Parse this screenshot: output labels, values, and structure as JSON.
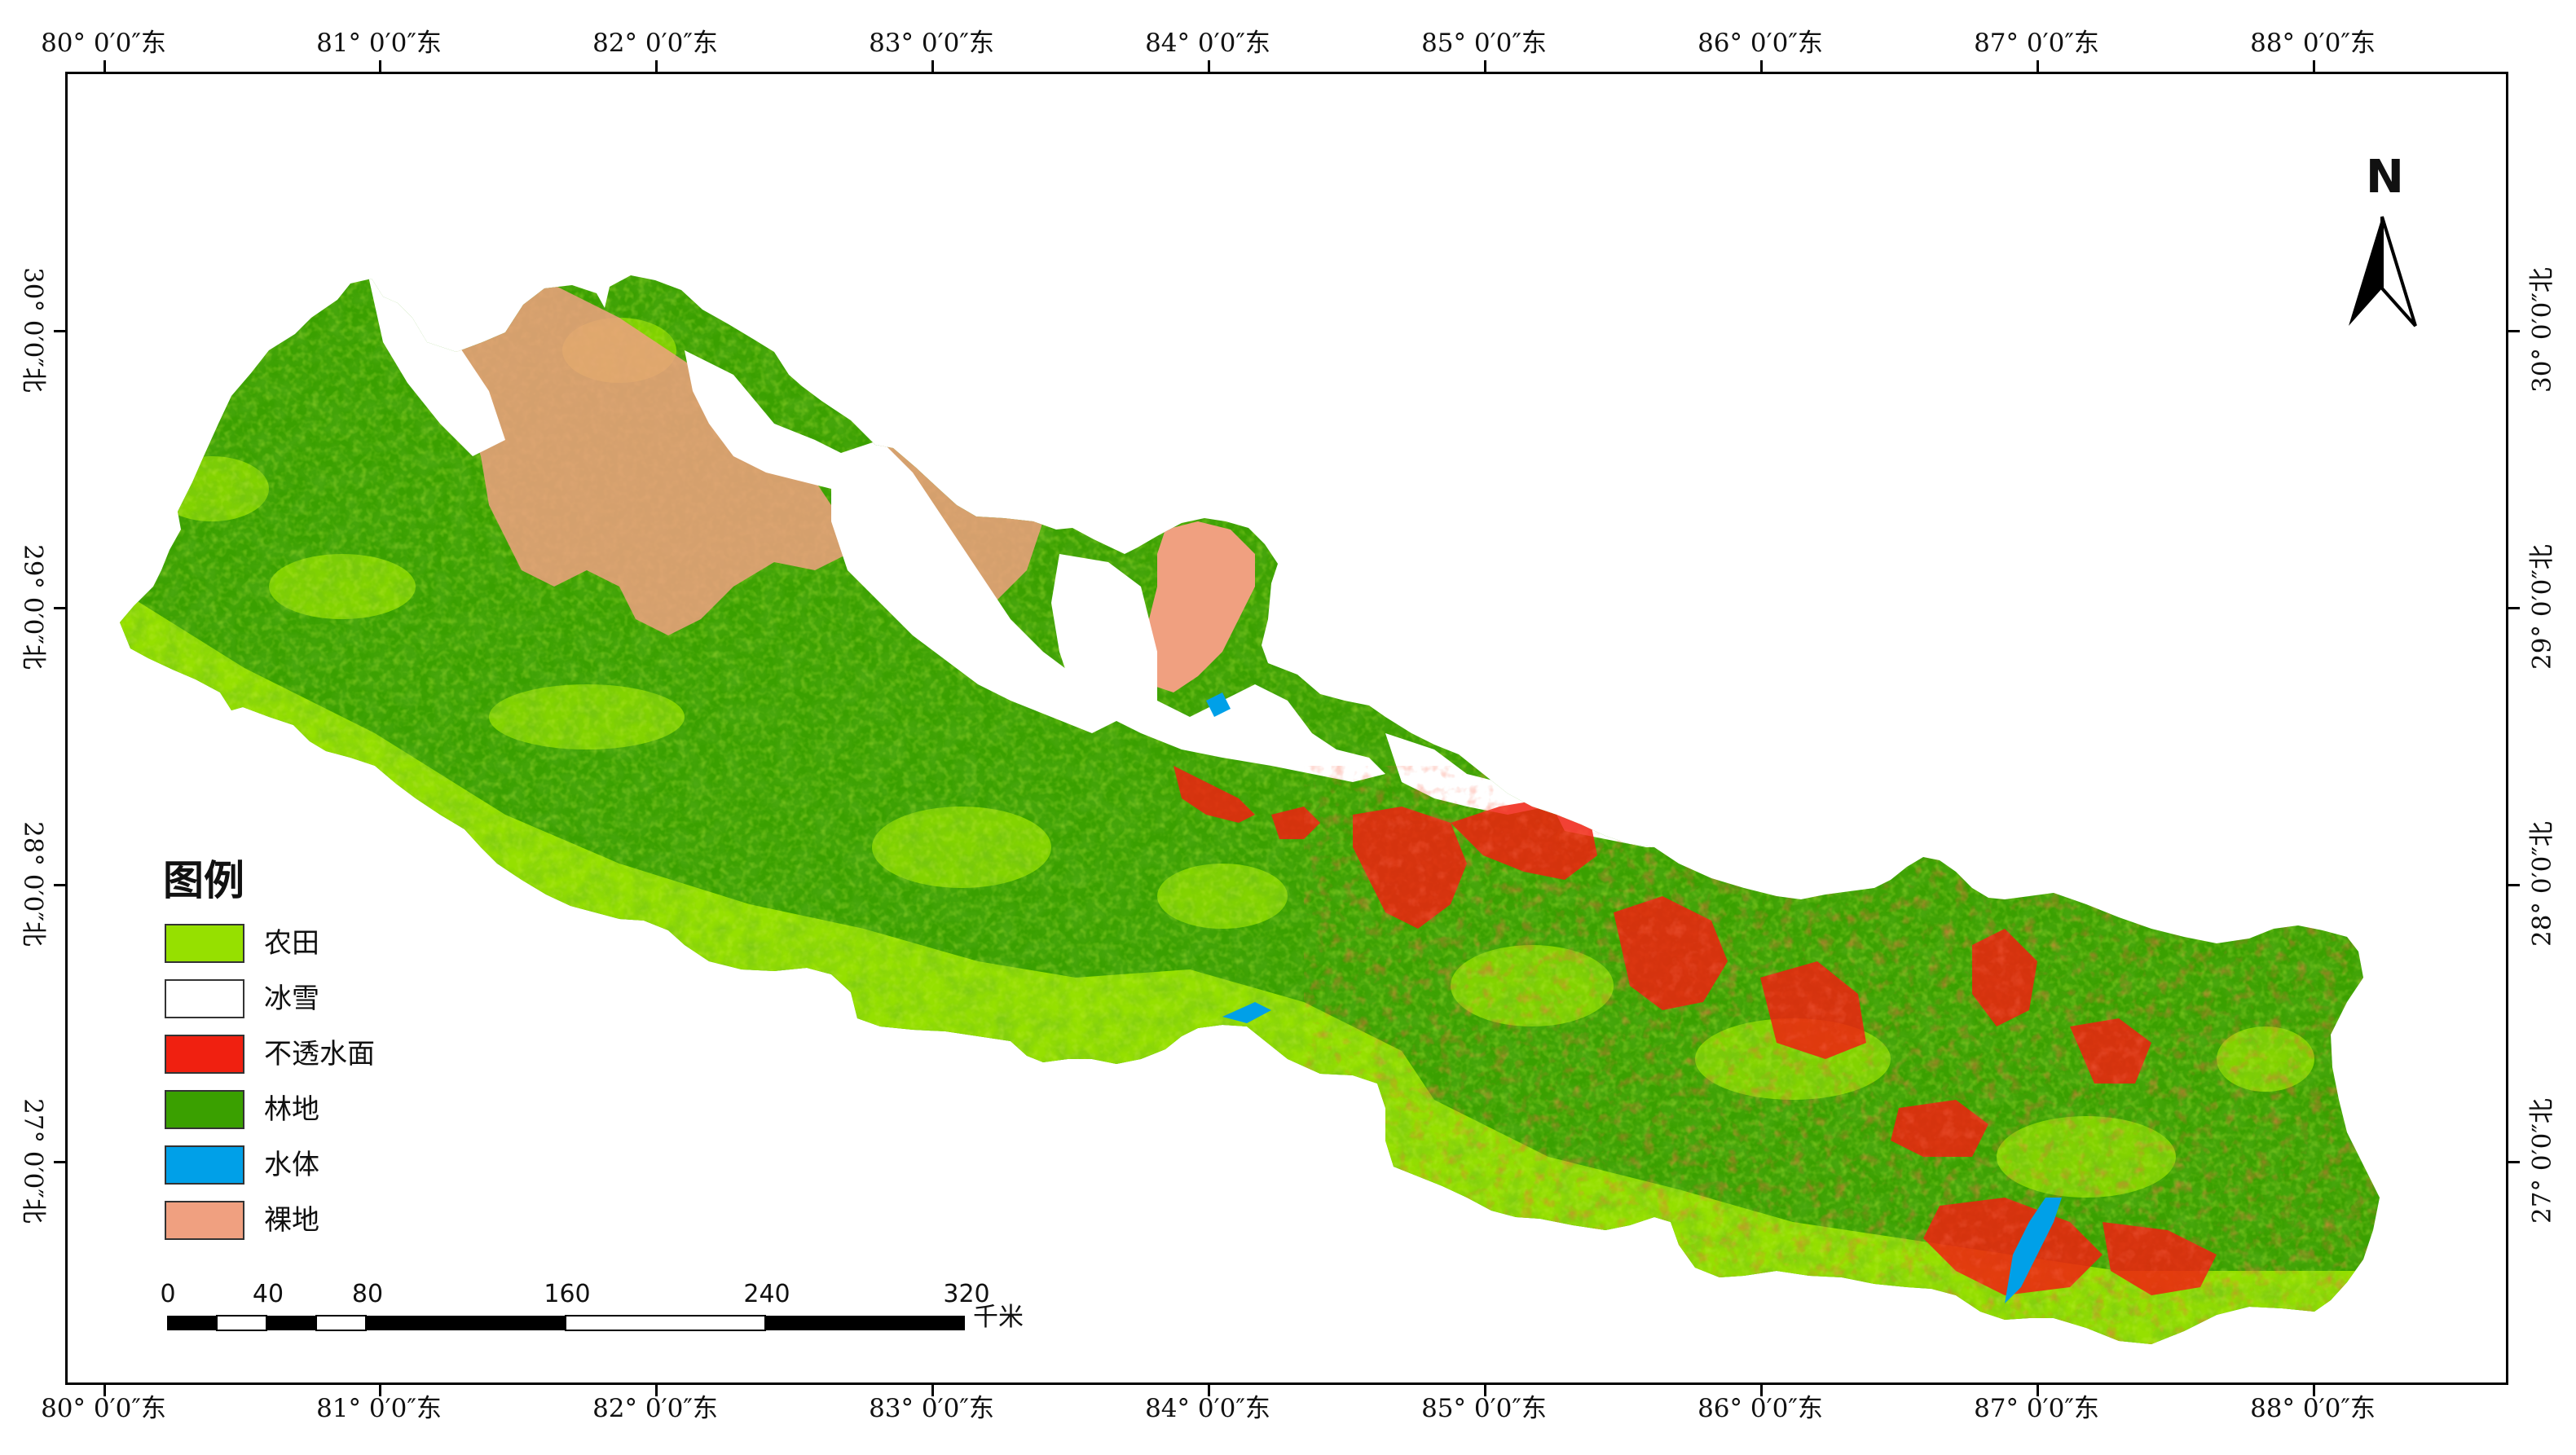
{
  "map": {
    "longitude_labels": [
      "80° 0′0″东",
      "81° 0′0″东",
      "82° 0′0″东",
      "83° 0′0″东",
      "84° 0′0″东",
      "85° 0′0″东",
      "86° 0′0″东",
      "87° 0′0″东",
      "88° 0′0″东"
    ],
    "latitude_labels": [
      "30° 0′0″北",
      "29° 0′0″北",
      "28° 0′0″北",
      "27° 0′0″北"
    ],
    "north_arrow": {
      "label": "N",
      "icon": "north-arrow-icon"
    }
  },
  "legend": {
    "title": "图例",
    "items": [
      {
        "label": "农田",
        "color": "#96e000"
      },
      {
        "label": "冰雪",
        "color": "#ffffff"
      },
      {
        "label": "不透水面",
        "color": "#f02010"
      },
      {
        "label": "林地",
        "color": "#3aa000"
      },
      {
        "label": "水体",
        "color": "#00a0e8"
      },
      {
        "label": "裸地",
        "color": "#f0a080"
      }
    ]
  },
  "scale_bar": {
    "labels": [
      "0",
      "40",
      "80",
      "160",
      "240",
      "320"
    ],
    "unit": "千米"
  },
  "colors": {
    "cropland": "#96e000",
    "forest": "#3aa000",
    "impervious": "#f02010",
    "water": "#00a0e8",
    "bare": "#f0a080",
    "snow": "#ffffff"
  }
}
